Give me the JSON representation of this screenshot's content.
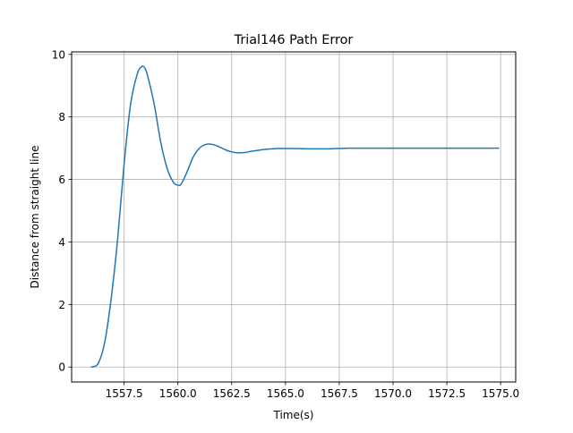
{
  "chart_data": {
    "type": "line",
    "title": "Trial146 Path Error",
    "xlabel": "Time(s)",
    "ylabel": "Distance from straight line",
    "xlim": [
      1555.06,
      1575.7
    ],
    "ylim": [
      -0.48,
      10.08
    ],
    "xticks": [
      1557.5,
      1560.0,
      1562.5,
      1565.0,
      1567.5,
      1570.0,
      1572.5,
      1575.0
    ],
    "xtick_labels": [
      "1557.5",
      "1560.0",
      "1562.5",
      "1565.0",
      "1567.5",
      "1570.0",
      "1572.5",
      "1575.0"
    ],
    "yticks": [
      0,
      2,
      4,
      6,
      8,
      10
    ],
    "ytick_labels": [
      "0",
      "2",
      "4",
      "6",
      "8",
      "10"
    ],
    "grid": true,
    "line_color": "#1f77b4",
    "series": [
      {
        "x": [
          1556.0,
          1556.3,
          1556.6,
          1556.9,
          1557.2,
          1557.5,
          1557.8,
          1558.1,
          1558.3,
          1558.45,
          1558.6,
          1558.9,
          1559.2,
          1559.5,
          1559.8,
          1560.0,
          1560.15,
          1560.4,
          1560.7,
          1561.0,
          1561.3,
          1561.6,
          1561.9,
          1562.2,
          1562.5,
          1562.8,
          1563.1,
          1563.4,
          1563.8,
          1564.2,
          1564.6,
          1565.0,
          1565.5,
          1566.0,
          1567.0,
          1568.0,
          1570.0,
          1572.0,
          1574.0,
          1574.9
        ],
        "y": [
          0.0,
          0.12,
          0.8,
          2.2,
          4.1,
          6.5,
          8.4,
          9.35,
          9.6,
          9.58,
          9.3,
          8.4,
          7.2,
          6.35,
          5.9,
          5.82,
          5.85,
          6.2,
          6.7,
          7.0,
          7.12,
          7.12,
          7.05,
          6.95,
          6.88,
          6.85,
          6.86,
          6.9,
          6.94,
          6.97,
          6.99,
          6.99,
          6.99,
          6.98,
          6.98,
          7.0,
          7.0,
          7.0,
          7.0,
          7.0
        ]
      }
    ]
  }
}
